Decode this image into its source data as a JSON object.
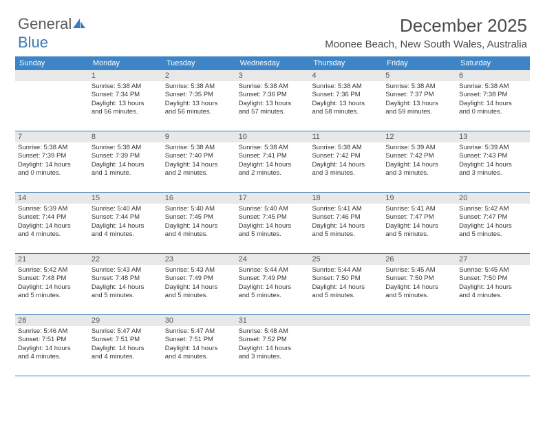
{
  "logo": {
    "part1": "General",
    "part2": "Blue"
  },
  "title": "December 2025",
  "subtitle": "Moonee Beach, New South Wales, Australia",
  "style": {
    "header_bg": "#3d85c6",
    "header_fg": "#ffffff",
    "daynum_bg": "#e8e8e8",
    "border_color": "#3d79b8",
    "text_color": "#333333",
    "logo_gray": "#5a5a5a",
    "logo_blue": "#3d79b8",
    "page_bg": "#ffffff",
    "title_fontsize": 26,
    "subtitle_fontsize": 15,
    "cell_fontsize": 9.5
  },
  "day_headers": [
    "Sunday",
    "Monday",
    "Tuesday",
    "Wednesday",
    "Thursday",
    "Friday",
    "Saturday"
  ],
  "weeks": [
    [
      {
        "n": "",
        "sr": "",
        "ss": "",
        "dl1": "",
        "dl2": ""
      },
      {
        "n": "1",
        "sr": "Sunrise: 5:38 AM",
        "ss": "Sunset: 7:34 PM",
        "dl1": "Daylight: 13 hours",
        "dl2": "and 56 minutes."
      },
      {
        "n": "2",
        "sr": "Sunrise: 5:38 AM",
        "ss": "Sunset: 7:35 PM",
        "dl1": "Daylight: 13 hours",
        "dl2": "and 56 minutes."
      },
      {
        "n": "3",
        "sr": "Sunrise: 5:38 AM",
        "ss": "Sunset: 7:36 PM",
        "dl1": "Daylight: 13 hours",
        "dl2": "and 57 minutes."
      },
      {
        "n": "4",
        "sr": "Sunrise: 5:38 AM",
        "ss": "Sunset: 7:36 PM",
        "dl1": "Daylight: 13 hours",
        "dl2": "and 58 minutes."
      },
      {
        "n": "5",
        "sr": "Sunrise: 5:38 AM",
        "ss": "Sunset: 7:37 PM",
        "dl1": "Daylight: 13 hours",
        "dl2": "and 59 minutes."
      },
      {
        "n": "6",
        "sr": "Sunrise: 5:38 AM",
        "ss": "Sunset: 7:38 PM",
        "dl1": "Daylight: 14 hours",
        "dl2": "and 0 minutes."
      }
    ],
    [
      {
        "n": "7",
        "sr": "Sunrise: 5:38 AM",
        "ss": "Sunset: 7:39 PM",
        "dl1": "Daylight: 14 hours",
        "dl2": "and 0 minutes."
      },
      {
        "n": "8",
        "sr": "Sunrise: 5:38 AM",
        "ss": "Sunset: 7:39 PM",
        "dl1": "Daylight: 14 hours",
        "dl2": "and 1 minute."
      },
      {
        "n": "9",
        "sr": "Sunrise: 5:38 AM",
        "ss": "Sunset: 7:40 PM",
        "dl1": "Daylight: 14 hours",
        "dl2": "and 2 minutes."
      },
      {
        "n": "10",
        "sr": "Sunrise: 5:38 AM",
        "ss": "Sunset: 7:41 PM",
        "dl1": "Daylight: 14 hours",
        "dl2": "and 2 minutes."
      },
      {
        "n": "11",
        "sr": "Sunrise: 5:38 AM",
        "ss": "Sunset: 7:42 PM",
        "dl1": "Daylight: 14 hours",
        "dl2": "and 3 minutes."
      },
      {
        "n": "12",
        "sr": "Sunrise: 5:39 AM",
        "ss": "Sunset: 7:42 PM",
        "dl1": "Daylight: 14 hours",
        "dl2": "and 3 minutes."
      },
      {
        "n": "13",
        "sr": "Sunrise: 5:39 AM",
        "ss": "Sunset: 7:43 PM",
        "dl1": "Daylight: 14 hours",
        "dl2": "and 3 minutes."
      }
    ],
    [
      {
        "n": "14",
        "sr": "Sunrise: 5:39 AM",
        "ss": "Sunset: 7:44 PM",
        "dl1": "Daylight: 14 hours",
        "dl2": "and 4 minutes."
      },
      {
        "n": "15",
        "sr": "Sunrise: 5:40 AM",
        "ss": "Sunset: 7:44 PM",
        "dl1": "Daylight: 14 hours",
        "dl2": "and 4 minutes."
      },
      {
        "n": "16",
        "sr": "Sunrise: 5:40 AM",
        "ss": "Sunset: 7:45 PM",
        "dl1": "Daylight: 14 hours",
        "dl2": "and 4 minutes."
      },
      {
        "n": "17",
        "sr": "Sunrise: 5:40 AM",
        "ss": "Sunset: 7:45 PM",
        "dl1": "Daylight: 14 hours",
        "dl2": "and 5 minutes."
      },
      {
        "n": "18",
        "sr": "Sunrise: 5:41 AM",
        "ss": "Sunset: 7:46 PM",
        "dl1": "Daylight: 14 hours",
        "dl2": "and 5 minutes."
      },
      {
        "n": "19",
        "sr": "Sunrise: 5:41 AM",
        "ss": "Sunset: 7:47 PM",
        "dl1": "Daylight: 14 hours",
        "dl2": "and 5 minutes."
      },
      {
        "n": "20",
        "sr": "Sunrise: 5:42 AM",
        "ss": "Sunset: 7:47 PM",
        "dl1": "Daylight: 14 hours",
        "dl2": "and 5 minutes."
      }
    ],
    [
      {
        "n": "21",
        "sr": "Sunrise: 5:42 AM",
        "ss": "Sunset: 7:48 PM",
        "dl1": "Daylight: 14 hours",
        "dl2": "and 5 minutes."
      },
      {
        "n": "22",
        "sr": "Sunrise: 5:43 AM",
        "ss": "Sunset: 7:48 PM",
        "dl1": "Daylight: 14 hours",
        "dl2": "and 5 minutes."
      },
      {
        "n": "23",
        "sr": "Sunrise: 5:43 AM",
        "ss": "Sunset: 7:49 PM",
        "dl1": "Daylight: 14 hours",
        "dl2": "and 5 minutes."
      },
      {
        "n": "24",
        "sr": "Sunrise: 5:44 AM",
        "ss": "Sunset: 7:49 PM",
        "dl1": "Daylight: 14 hours",
        "dl2": "and 5 minutes."
      },
      {
        "n": "25",
        "sr": "Sunrise: 5:44 AM",
        "ss": "Sunset: 7:50 PM",
        "dl1": "Daylight: 14 hours",
        "dl2": "and 5 minutes."
      },
      {
        "n": "26",
        "sr": "Sunrise: 5:45 AM",
        "ss": "Sunset: 7:50 PM",
        "dl1": "Daylight: 14 hours",
        "dl2": "and 5 minutes."
      },
      {
        "n": "27",
        "sr": "Sunrise: 5:45 AM",
        "ss": "Sunset: 7:50 PM",
        "dl1": "Daylight: 14 hours",
        "dl2": "and 4 minutes."
      }
    ],
    [
      {
        "n": "28",
        "sr": "Sunrise: 5:46 AM",
        "ss": "Sunset: 7:51 PM",
        "dl1": "Daylight: 14 hours",
        "dl2": "and 4 minutes."
      },
      {
        "n": "29",
        "sr": "Sunrise: 5:47 AM",
        "ss": "Sunset: 7:51 PM",
        "dl1": "Daylight: 14 hours",
        "dl2": "and 4 minutes."
      },
      {
        "n": "30",
        "sr": "Sunrise: 5:47 AM",
        "ss": "Sunset: 7:51 PM",
        "dl1": "Daylight: 14 hours",
        "dl2": "and 4 minutes."
      },
      {
        "n": "31",
        "sr": "Sunrise: 5:48 AM",
        "ss": "Sunset: 7:52 PM",
        "dl1": "Daylight: 14 hours",
        "dl2": "and 3 minutes."
      },
      {
        "n": "",
        "sr": "",
        "ss": "",
        "dl1": "",
        "dl2": ""
      },
      {
        "n": "",
        "sr": "",
        "ss": "",
        "dl1": "",
        "dl2": ""
      },
      {
        "n": "",
        "sr": "",
        "ss": "",
        "dl1": "",
        "dl2": ""
      }
    ]
  ]
}
